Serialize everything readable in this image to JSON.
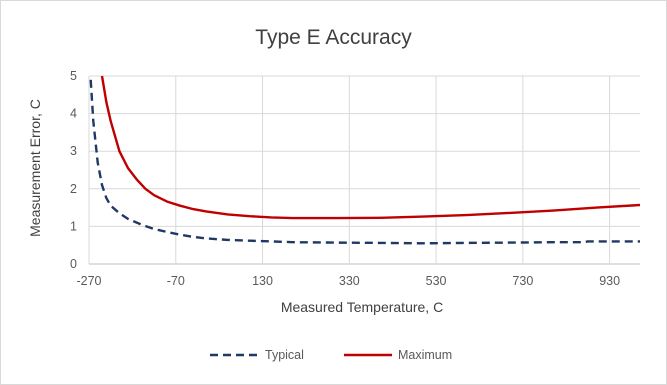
{
  "chart_data": {
    "type": "line",
    "title": "Type E Accuracy",
    "xlabel": "Measured Temperature, C",
    "ylabel": "Measurement Error, C",
    "xlim": [
      -270,
      1000
    ],
    "ylim": [
      0,
      5
    ],
    "xticks": [
      -270,
      -70,
      130,
      330,
      530,
      730,
      930
    ],
    "yticks": [
      0,
      1,
      2,
      3,
      4,
      5
    ],
    "grid": true,
    "legend_position": "bottom",
    "series": [
      {
        "name": "Typical",
        "color": "#1f3864",
        "style": "dashed",
        "x": [
          -266,
          -260,
          -250,
          -240,
          -230,
          -220,
          -200,
          -180,
          -150,
          -120,
          -90,
          -60,
          -30,
          0,
          50,
          100,
          150,
          200,
          300,
          400,
          500,
          600,
          700,
          800,
          870,
          880,
          900,
          950,
          1000
        ],
        "y": [
          4.9,
          3.8,
          2.7,
          2.1,
          1.75,
          1.55,
          1.35,
          1.2,
          1.05,
          0.93,
          0.85,
          0.78,
          0.72,
          0.68,
          0.64,
          0.62,
          0.6,
          0.58,
          0.57,
          0.56,
          0.55,
          0.56,
          0.57,
          0.58,
          0.58,
          0.6,
          0.6,
          0.6,
          0.6
        ]
      },
      {
        "name": "Maximum",
        "color": "#c00000",
        "style": "solid",
        "x": [
          -240,
          -230,
          -220,
          -200,
          -180,
          -160,
          -140,
          -120,
          -90,
          -60,
          -30,
          0,
          50,
          100,
          150,
          200,
          300,
          400,
          500,
          600,
          700,
          800,
          900,
          1000
        ],
        "y": [
          5.0,
          4.3,
          3.8,
          3.0,
          2.55,
          2.25,
          2.0,
          1.83,
          1.66,
          1.55,
          1.46,
          1.4,
          1.32,
          1.27,
          1.24,
          1.22,
          1.22,
          1.23,
          1.26,
          1.3,
          1.36,
          1.42,
          1.5,
          1.57
        ]
      }
    ]
  }
}
